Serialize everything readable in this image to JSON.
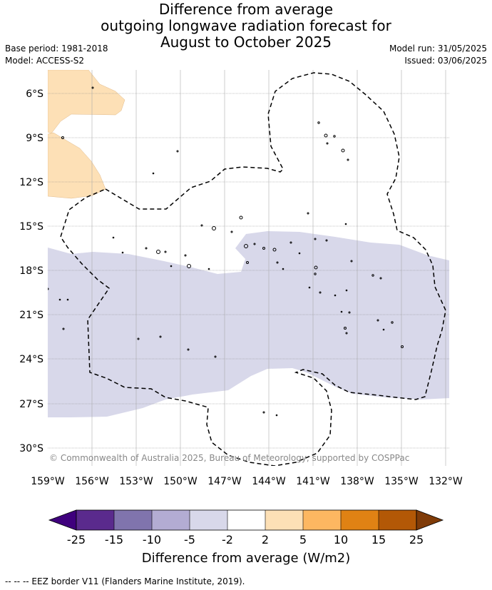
{
  "title": {
    "line1": "Difference from average",
    "line2": "outgoing longwave radiation forecast for",
    "line3": "August to October 2025"
  },
  "meta": {
    "base_period": "Base period: 1981-2018",
    "model": "Model: ACCESS-S2",
    "model_run": "Model run: 31/05/2025",
    "issued": "Issued: 03/06/2025"
  },
  "map": {
    "lat_labels": [
      "6°S",
      "9°S",
      "12°S",
      "15°S",
      "18°S",
      "21°S",
      "24°S",
      "27°S",
      "30°S"
    ],
    "lon_labels": [
      "159°W",
      "156°W",
      "153°W",
      "150°W",
      "147°W",
      "144°W",
      "141°W",
      "138°W",
      "135°W",
      "132°W"
    ],
    "copyright": "© Commonwealth of Australia 2025, Bureau of Meteorology, supported by COSPPac",
    "colors": {
      "light_orange": "#fde0b6",
      "light_purple": "#d8d8ea",
      "grid": "#888888"
    }
  },
  "colorbar": {
    "ticks": [
      "-25",
      "-15",
      "-10",
      "-5",
      "-2",
      "2",
      "5",
      "10",
      "15",
      "25"
    ],
    "colors": [
      "#3f007d",
      "#5a2a8d",
      "#8074ad",
      "#b3acd3",
      "#d8d8ea",
      "#ffffff",
      "#fde0b6",
      "#fdb761",
      "#e08214",
      "#b35806",
      "#7f3b08"
    ],
    "title": "Difference from average (W/m2)"
  },
  "footnote": "--  --  -- EEZ border V11 (Flanders Marine Institute, 2019)."
}
